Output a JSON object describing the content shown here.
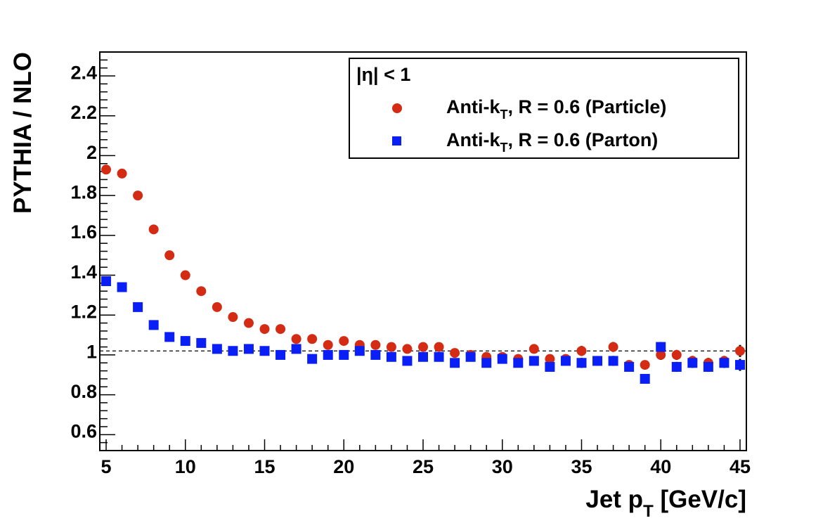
{
  "chart_data": {
    "type": "scatter",
    "title": "",
    "xlabel": "Jet p",
    "xlabel_sub": "T",
    "xlabel_unit": " [GeV/c]",
    "ylabel": "PYTHIA / NLO",
    "xlim": [
      4.6,
      45.4
    ],
    "ylim": [
      0.5,
      2.5
    ],
    "x_ticks": [
      5,
      10,
      15,
      20,
      25,
      30,
      35,
      40,
      45
    ],
    "y_ticks": [
      0.6,
      0.8,
      1,
      1.2,
      1.4,
      1.6,
      1.8,
      2,
      2.2,
      2.4
    ],
    "reference_line": 1,
    "grid": false,
    "legend": {
      "placement": "top-right",
      "header": "|η| < 1",
      "entries": [
        {
          "prefix": "Anti-k",
          "sub": "T",
          "suffix": ", R = 0.6 (Particle)"
        },
        {
          "prefix": "Anti-k",
          "sub": "T",
          "suffix": ", R = 0.6 (Parton)"
        }
      ]
    },
    "x": [
      5,
      6,
      7,
      8,
      9,
      10,
      11,
      12,
      13,
      14,
      15,
      16,
      17,
      18,
      19,
      20,
      21,
      22,
      23,
      24,
      25,
      26,
      27,
      28,
      29,
      30,
      31,
      32,
      33,
      34,
      35,
      36,
      37,
      38,
      39,
      40,
      41,
      42,
      43,
      44,
      45
    ],
    "series": [
      {
        "name": "Anti-kT, R = 0.6 (Particle)",
        "marker": "circle",
        "color": "#d42b14",
        "values": [
          1.91,
          1.89,
          1.78,
          1.61,
          1.48,
          1.38,
          1.3,
          1.22,
          1.17,
          1.14,
          1.11,
          1.11,
          1.06,
          1.06,
          1.03,
          1.05,
          1.03,
          1.03,
          1.02,
          1.01,
          1.02,
          1.02,
          0.99,
          0.98,
          0.97,
          0.97,
          0.96,
          1.01,
          0.96,
          0.96,
          1.0,
          0.95,
          1.02,
          0.93,
          0.93,
          0.98,
          0.98,
          0.95,
          0.94,
          0.95,
          1.0
        ],
        "errors": [
          0,
          0,
          0,
          0,
          0,
          0,
          0,
          0,
          0,
          0,
          0,
          0,
          0,
          0,
          0,
          0,
          0,
          0,
          0,
          0,
          0,
          0,
          0,
          0,
          0.005,
          0.01,
          0.01,
          0.02,
          0.02,
          0.02,
          0.025,
          0.02,
          0.025,
          0.02,
          0.02,
          0.025,
          0.025,
          0.025,
          0.025,
          0.025,
          0.03
        ]
      },
      {
        "name": "Anti-kT, R = 0.6 (Parton)",
        "marker": "square",
        "color": "#0a1ff5",
        "values": [
          1.35,
          1.32,
          1.22,
          1.13,
          1.07,
          1.05,
          1.04,
          1.01,
          1.0,
          1.01,
          1.0,
          0.98,
          1.01,
          0.96,
          0.98,
          0.98,
          1.0,
          0.98,
          0.97,
          0.95,
          0.97,
          0.97,
          0.94,
          0.97,
          0.94,
          0.96,
          0.94,
          0.95,
          0.92,
          0.95,
          0.94,
          0.95,
          0.95,
          0.92,
          0.86,
          1.02,
          0.92,
          0.94,
          0.92,
          0.94,
          0.93
        ]
      }
    ]
  }
}
